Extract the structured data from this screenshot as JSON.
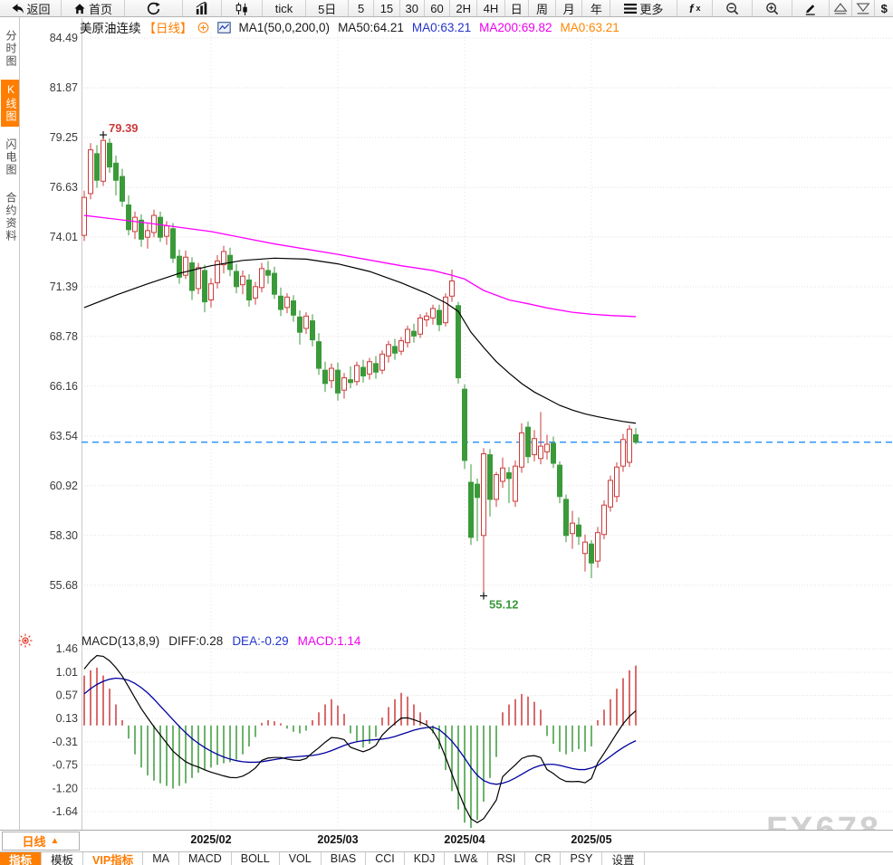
{
  "toolbar": {
    "items": [
      {
        "id": "back",
        "label": "返回"
      },
      {
        "id": "home",
        "label": "首页"
      },
      {
        "id": "refresh"
      },
      {
        "id": "bar-chart"
      },
      {
        "id": "candlestick"
      },
      {
        "id": "tick",
        "label": "tick"
      },
      {
        "id": "5d",
        "label": "5日"
      },
      {
        "id": "m5",
        "label": "5"
      },
      {
        "id": "m15",
        "label": "15"
      },
      {
        "id": "m30",
        "label": "30"
      },
      {
        "id": "m60",
        "label": "60"
      },
      {
        "id": "h2",
        "label": "2H"
      },
      {
        "id": "h4",
        "label": "4H"
      },
      {
        "id": "day",
        "label": "日"
      },
      {
        "id": "week",
        "label": "周"
      },
      {
        "id": "month",
        "label": "月"
      },
      {
        "id": "year",
        "label": "年"
      },
      {
        "id": "more",
        "label": "更多"
      },
      {
        "id": "fx",
        "label": "fx"
      },
      {
        "id": "zoom-out"
      },
      {
        "id": "zoom-in"
      },
      {
        "id": "draw"
      },
      {
        "id": "scroll-up"
      },
      {
        "id": "scroll-down"
      },
      {
        "id": "dollar",
        "label": "$"
      }
    ]
  },
  "sidebar": {
    "items": [
      {
        "label": "分时图",
        "active": false
      },
      {
        "label": "K线图",
        "active": true
      },
      {
        "label": "闪电图",
        "active": false
      },
      {
        "label": "合约资料",
        "active": false
      }
    ]
  },
  "chart_header": {
    "symbol": "美原油连续",
    "period_tag": "【日线】",
    "ma_settings": "MA1(50,0,200,0)",
    "ma50_label": "MA50:64.21",
    "ma0_blue": "MA0:63.21",
    "ma200_label": "MA200:69.82",
    "ma0_orange": "MA0:63.21"
  },
  "macd_header": {
    "title": "MACD(13,8,9)",
    "diff_label": "DIFF:0.28",
    "dea_label": "DEA:-0.29",
    "macd_label": "MACD:1.14"
  },
  "bottom": {
    "period_button": "日线",
    "period_arrow": "▲",
    "tabs": [
      {
        "label": "指标",
        "active": true
      },
      {
        "label": "模板"
      },
      {
        "label": "VIP指标",
        "vip": true
      },
      {
        "label": "MA"
      },
      {
        "label": "MACD"
      },
      {
        "label": "BOLL"
      },
      {
        "label": "VOL"
      },
      {
        "label": "BIAS"
      },
      {
        "label": "CCI"
      },
      {
        "label": "KDJ"
      },
      {
        "label": "LW&"
      },
      {
        "label": "RSI"
      },
      {
        "label": "CR"
      },
      {
        "label": "PSY"
      },
      {
        "label": "设置"
      }
    ]
  },
  "watermark": "FX678",
  "chart_data": {
    "type": "candlestick",
    "title": "美原油连续 日线 (WTI crude oil continuous, daily)",
    "price_axis": {
      "ticks": [
        84.49,
        81.87,
        79.25,
        76.63,
        74.01,
        71.39,
        68.78,
        66.16,
        63.54,
        60.92,
        58.3,
        55.68
      ],
      "last_price": 63.21
    },
    "macd_axis": {
      "ticks": [
        1.46,
        1.01,
        0.57,
        0.13,
        -0.31,
        -0.75,
        -1.2,
        -1.64
      ]
    },
    "x_ticks": [
      {
        "label": "2025/02",
        "index": 20
      },
      {
        "label": "2025/03",
        "index": 40
      },
      {
        "label": "2025/04",
        "index": 60
      },
      {
        "label": "2025/05",
        "index": 80
      }
    ],
    "high_marker": {
      "index": 3,
      "price": 79.39,
      "label": "79.39"
    },
    "low_marker": {
      "index": 63,
      "price": 55.12,
      "label": "55.12"
    },
    "candles": [
      [
        74.1,
        76.45,
        73.8,
        76.1
      ],
      [
        76.3,
        78.95,
        76.0,
        78.6
      ],
      [
        78.4,
        78.85,
        76.6,
        77.0
      ],
      [
        76.95,
        79.39,
        76.7,
        79.1
      ],
      [
        78.95,
        79.2,
        77.4,
        77.7
      ],
      [
        77.9,
        78.3,
        76.2,
        77.0
      ],
      [
        77.2,
        77.6,
        75.6,
        75.9
      ],
      [
        75.7,
        76.2,
        74.1,
        74.4
      ],
      [
        74.3,
        75.35,
        73.9,
        75.05
      ],
      [
        74.9,
        75.2,
        73.5,
        73.9
      ],
      [
        74.0,
        74.7,
        73.4,
        74.35
      ],
      [
        74.25,
        75.45,
        74.0,
        75.15
      ],
      [
        75.05,
        75.35,
        73.75,
        74.0
      ],
      [
        74.05,
        74.85,
        73.6,
        74.6
      ],
      [
        74.45,
        74.75,
        72.65,
        72.9
      ],
      [
        73.0,
        73.35,
        71.55,
        71.9
      ],
      [
        72.0,
        73.3,
        71.8,
        72.95
      ],
      [
        72.65,
        72.95,
        70.7,
        71.2
      ],
      [
        71.3,
        72.65,
        71.0,
        72.4
      ],
      [
        72.25,
        72.55,
        70.05,
        70.6
      ],
      [
        70.7,
        71.85,
        70.3,
        71.55
      ],
      [
        71.6,
        73.05,
        71.3,
        72.75
      ],
      [
        72.55,
        73.55,
        72.1,
        73.25
      ],
      [
        73.05,
        73.45,
        71.95,
        72.3
      ],
      [
        72.2,
        72.6,
        71.05,
        71.4
      ],
      [
        71.5,
        72.25,
        71.0,
        71.95
      ],
      [
        71.75,
        72.05,
        70.35,
        70.7
      ],
      [
        70.8,
        71.65,
        70.45,
        71.4
      ],
      [
        71.35,
        72.65,
        71.1,
        72.35
      ],
      [
        72.25,
        72.75,
        71.55,
        72.0
      ],
      [
        72.1,
        72.45,
        70.75,
        71.0
      ],
      [
        70.9,
        71.35,
        69.85,
        70.2
      ],
      [
        70.3,
        71.05,
        70.0,
        70.85
      ],
      [
        70.65,
        70.95,
        69.55,
        69.9
      ],
      [
        69.8,
        70.15,
        68.35,
        69.0
      ],
      [
        69.2,
        70.05,
        68.9,
        69.85
      ],
      [
        69.6,
        69.95,
        68.25,
        68.6
      ],
      [
        68.5,
        68.95,
        66.75,
        67.1
      ],
      [
        67.0,
        67.45,
        65.85,
        66.3
      ],
      [
        66.45,
        67.35,
        66.05,
        67.1
      ],
      [
        67.0,
        67.4,
        65.4,
        65.8
      ],
      [
        65.95,
        66.85,
        65.5,
        66.6
      ],
      [
        66.5,
        67.2,
        66.05,
        66.35
      ],
      [
        66.4,
        67.45,
        66.2,
        67.25
      ],
      [
        67.15,
        67.55,
        66.35,
        66.7
      ],
      [
        66.8,
        67.65,
        66.5,
        67.45
      ],
      [
        67.35,
        67.75,
        66.55,
        66.9
      ],
      [
        67.0,
        68.05,
        66.8,
        67.85
      ],
      [
        67.75,
        68.55,
        67.4,
        68.35
      ],
      [
        68.25,
        68.65,
        67.55,
        67.9
      ],
      [
        68.0,
        68.75,
        67.8,
        68.55
      ],
      [
        68.45,
        69.35,
        68.2,
        69.15
      ],
      [
        69.05,
        69.45,
        68.45,
        68.8
      ],
      [
        68.9,
        69.95,
        68.7,
        69.75
      ],
      [
        69.65,
        70.05,
        69.3,
        69.85
      ],
      [
        69.75,
        70.45,
        69.4,
        70.25
      ],
      [
        70.15,
        70.45,
        69.05,
        69.4
      ],
      [
        69.5,
        71.05,
        69.3,
        70.85
      ],
      [
        70.9,
        72.3,
        70.6,
        71.7
      ],
      [
        70.4,
        70.6,
        66.3,
        66.6
      ],
      [
        66.0,
        66.25,
        61.8,
        62.25
      ],
      [
        61.1,
        62.05,
        57.8,
        58.2
      ],
      [
        61.0,
        61.3,
        58.0,
        60.3
      ],
      [
        58.3,
        62.9,
        55.12,
        62.6
      ],
      [
        62.55,
        62.85,
        59.3,
        60.2
      ],
      [
        60.2,
        61.65,
        59.8,
        61.5
      ],
      [
        61.15,
        62.4,
        60.8,
        61.85
      ],
      [
        61.6,
        61.9,
        60.0,
        61.3
      ],
      [
        60.1,
        62.25,
        59.8,
        61.95
      ],
      [
        61.9,
        64.2,
        61.6,
        63.7
      ],
      [
        64.0,
        64.3,
        62.1,
        62.45
      ],
      [
        62.55,
        63.85,
        62.2,
        63.4
      ],
      [
        62.35,
        64.8,
        62.05,
        63.0
      ],
      [
        62.7,
        63.6,
        62.3,
        63.1
      ],
      [
        63.15,
        63.5,
        61.85,
        62.1
      ],
      [
        62.0,
        62.2,
        60.0,
        60.35
      ],
      [
        60.2,
        60.45,
        57.95,
        58.3
      ],
      [
        58.4,
        59.6,
        57.6,
        58.95
      ],
      [
        58.85,
        59.25,
        57.8,
        58.25
      ],
      [
        57.35,
        58.35,
        56.4,
        57.95
      ],
      [
        57.85,
        58.05,
        56.05,
        56.85
      ],
      [
        56.95,
        58.75,
        56.6,
        58.45
      ],
      [
        58.35,
        60.15,
        58.1,
        59.9
      ],
      [
        59.8,
        61.45,
        59.55,
        61.2
      ],
      [
        60.35,
        62.15,
        60.05,
        61.9
      ],
      [
        61.95,
        63.65,
        61.65,
        63.35
      ],
      [
        62.15,
        64.1,
        61.9,
        63.9
      ],
      [
        63.6,
        63.95,
        63.1,
        63.21
      ]
    ],
    "ma50": [
      [
        0,
        70.3
      ],
      [
        5,
        70.95
      ],
      [
        10,
        71.55
      ],
      [
        15,
        72.1
      ],
      [
        20,
        72.5
      ],
      [
        25,
        72.78
      ],
      [
        30,
        72.9
      ],
      [
        35,
        72.85
      ],
      [
        40,
        72.6
      ],
      [
        45,
        72.2
      ],
      [
        50,
        71.6
      ],
      [
        54,
        71.05
      ],
      [
        57,
        70.55
      ],
      [
        59,
        70.1
      ],
      [
        61,
        69.0
      ],
      [
        63,
        68.2
      ],
      [
        65,
        67.45
      ],
      [
        67,
        66.85
      ],
      [
        69,
        66.3
      ],
      [
        71,
        65.85
      ],
      [
        73,
        65.5
      ],
      [
        75,
        65.15
      ],
      [
        77,
        64.9
      ],
      [
        79,
        64.7
      ],
      [
        81,
        64.55
      ],
      [
        83,
        64.42
      ],
      [
        85,
        64.3
      ],
      [
        87,
        64.21
      ]
    ],
    "ma200": [
      [
        0,
        75.15
      ],
      [
        10,
        74.75
      ],
      [
        20,
        74.3
      ],
      [
        30,
        73.65
      ],
      [
        40,
        73.1
      ],
      [
        50,
        72.5
      ],
      [
        55,
        72.25
      ],
      [
        58,
        72.0
      ],
      [
        60,
        71.8
      ],
      [
        63,
        71.2
      ],
      [
        67,
        70.7
      ],
      [
        70,
        70.5
      ],
      [
        73,
        70.28
      ],
      [
        77,
        70.05
      ],
      [
        80,
        69.95
      ],
      [
        83,
        69.88
      ],
      [
        87,
        69.82
      ]
    ],
    "macd": {
      "dea": [
        0.6,
        0.7,
        0.78,
        0.84,
        0.88,
        0.9,
        0.89,
        0.86,
        0.8,
        0.72,
        0.62,
        0.5,
        0.37,
        0.24,
        0.11,
        -0.02,
        -0.14,
        -0.25,
        -0.34,
        -0.42,
        -0.49,
        -0.55,
        -0.6,
        -0.64,
        -0.67,
        -0.69,
        -0.7,
        -0.7,
        -0.69,
        -0.67,
        -0.65,
        -0.63,
        -0.61,
        -0.6,
        -0.59,
        -0.58,
        -0.57,
        -0.55,
        -0.52,
        -0.48,
        -0.43,
        -0.38,
        -0.34,
        -0.31,
        -0.29,
        -0.28,
        -0.27,
        -0.26,
        -0.24,
        -0.21,
        -0.17,
        -0.13,
        -0.09,
        -0.06,
        -0.04,
        -0.03,
        -0.08,
        -0.18,
        -0.3,
        -0.45,
        -0.62,
        -0.8,
        -0.95,
        -1.05,
        -1.1,
        -1.12,
        -1.1,
        -1.06,
        -1.0,
        -0.93,
        -0.86,
        -0.8,
        -0.76,
        -0.74,
        -0.74,
        -0.76,
        -0.79,
        -0.82,
        -0.84,
        -0.84,
        -0.81,
        -0.76,
        -0.68,
        -0.59,
        -0.5,
        -0.42,
        -0.35,
        -0.29
      ],
      "hist": [
        0.95,
        1.05,
        1.1,
        0.95,
        0.7,
        0.4,
        0.1,
        -0.25,
        -0.55,
        -0.8,
        -0.95,
        -1.05,
        -1.1,
        -1.15,
        -1.2,
        -1.15,
        -1.1,
        -1.0,
        -0.9,
        -0.85,
        -0.8,
        -0.75,
        -0.72,
        -0.7,
        -0.65,
        -0.55,
        -0.4,
        -0.22,
        0.05,
        0.1,
        0.08,
        0.04,
        -0.06,
        -0.12,
        -0.15,
        -0.1,
        0.1,
        0.25,
        0.4,
        0.5,
        0.38,
        0.22,
        -0.15,
        -0.3,
        -0.42,
        -0.35,
        -0.22,
        0.15,
        0.35,
        0.5,
        0.62,
        0.55,
        0.4,
        0.25,
        0.1,
        -0.15,
        -0.45,
        -0.85,
        -1.25,
        -1.6,
        -1.85,
        -1.95,
        -1.8,
        -1.45,
        -1.0,
        -0.6,
        0.25,
        0.4,
        0.5,
        0.6,
        0.55,
        0.45,
        0.3,
        -0.2,
        -0.35,
        -0.5,
        -0.55,
        -0.5,
        -0.45,
        -0.5,
        -0.4,
        0.1,
        0.3,
        0.5,
        0.7,
        0.9,
        1.05,
        1.14
      ]
    },
    "colors": {
      "up": "#cc3b3b",
      "down": "#3a9a3a",
      "ma50": "#000000",
      "ma200": "#ff00ff",
      "diff": "#000000",
      "dea": "#0000a0",
      "last_price_line": "#1f8fff",
      "accent": "#ff7e00"
    }
  }
}
